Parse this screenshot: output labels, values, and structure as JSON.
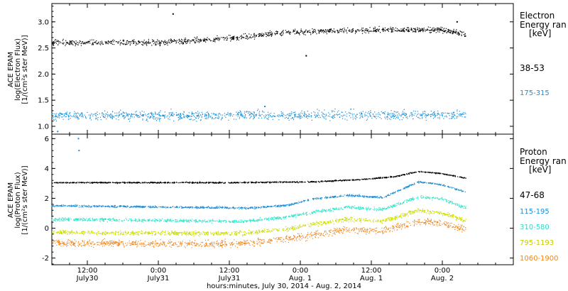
{
  "chart_data": [
    {
      "type": "scatter",
      "instrument_label": "ACE EPAM",
      "ylabel": "log(Electron Flux)",
      "ylabel_units": "[1/(cm²s ster MeV)]",
      "ylim": [
        0.85,
        3.35
      ],
      "yticks": [
        1.0,
        1.5,
        2.0,
        2.5,
        3.0
      ],
      "ytick_labels": [
        "1.0",
        "1.5",
        "2.0",
        "2.5",
        "3.0"
      ],
      "legend_title": "Electron",
      "legend_subtitle": "Energy ran",
      "legend_units": "[keV]",
      "series": [
        {
          "name": "38-53",
          "color": "#000000",
          "approx_level": [
            [
              0,
              2.6
            ],
            [
              18,
              2.6
            ],
            [
              30,
              2.68
            ],
            [
              40,
              2.8
            ],
            [
              55,
              2.85
            ],
            [
              66,
              2.85
            ],
            [
              70,
              2.75
            ]
          ],
          "scatter": 0.05,
          "outliers": [
            [
              20.5,
              3.15
            ],
            [
              43,
              2.35
            ],
            [
              68.5,
              3.0
            ]
          ]
        },
        {
          "name": "175-315",
          "color": "#1a8fd9",
          "approx_level": [
            [
              0,
              1.2
            ],
            [
              70,
              1.22
            ]
          ],
          "scatter": 0.08,
          "outliers": [
            [
              1,
              0.9
            ],
            [
              36,
              1.38
            ]
          ]
        }
      ]
    },
    {
      "type": "scatter",
      "instrument_label": "ACE EPAM",
      "ylabel": "log(Proton Flux)",
      "ylabel_units": "[1/(cm²s ster MeV)]",
      "ylim": [
        -2.45,
        6.3
      ],
      "yticks": [
        -2,
        0,
        2,
        4,
        6
      ],
      "ytick_labels": [
        "-2",
        "0",
        "2",
        "4",
        "6"
      ],
      "legend_title": "Proton",
      "legend_subtitle": "Energy ran",
      "legend_units": "[keV]",
      "series": [
        {
          "name": "47-68",
          "color": "#000000",
          "approx_level": [
            [
              0,
              3.05
            ],
            [
              30,
              3.05
            ],
            [
              44,
              3.1
            ],
            [
              52,
              3.25
            ],
            [
              58,
              3.45
            ],
            [
              62,
              3.8
            ],
            [
              66,
              3.65
            ],
            [
              70,
              3.35
            ]
          ],
          "scatter": 0.04,
          "outliers": []
        },
        {
          "name": "115-195",
          "color": "#1a8fd9",
          "approx_level": [
            [
              0,
              1.5
            ],
            [
              34,
              1.35
            ],
            [
              40,
              1.55
            ],
            [
              44,
              1.95
            ],
            [
              50,
              2.2
            ],
            [
              56,
              2.05
            ],
            [
              62,
              3.1
            ],
            [
              66,
              2.9
            ],
            [
              70,
              2.4
            ]
          ],
          "scatter": 0.06,
          "outliers": [
            [
              4.5,
              6.0
            ],
            [
              4.6,
              5.2
            ]
          ]
        },
        {
          "name": "310-580",
          "color": "#33e6cc",
          "approx_level": [
            [
              0,
              0.6
            ],
            [
              32,
              0.45
            ],
            [
              40,
              0.75
            ],
            [
              44,
              1.05
            ],
            [
              50,
              1.4
            ],
            [
              56,
              1.25
            ],
            [
              62,
              2.1
            ],
            [
              66,
              1.95
            ],
            [
              70,
              1.35
            ]
          ],
          "scatter": 0.1,
          "outliers": []
        },
        {
          "name": "795-1193",
          "color": "#ccdd00",
          "approx_level": [
            [
              0,
              -0.3
            ],
            [
              32,
              -0.35
            ],
            [
              40,
              -0.05
            ],
            [
              44,
              0.25
            ],
            [
              50,
              0.6
            ],
            [
              56,
              0.45
            ],
            [
              62,
              1.2
            ],
            [
              66,
              1.0
            ],
            [
              70,
              0.5
            ]
          ],
          "scatter": 0.14,
          "outliers": []
        },
        {
          "name": "1060-1900",
          "color": "#ee8822",
          "approx_level": [
            [
              0,
              -1.0
            ],
            [
              32,
              -1.05
            ],
            [
              40,
              -0.7
            ],
            [
              44,
              -0.45
            ],
            [
              50,
              -0.1
            ],
            [
              56,
              -0.2
            ],
            [
              62,
              0.45
            ],
            [
              66,
              0.35
            ],
            [
              70,
              -0.1
            ]
          ],
          "scatter": 0.22,
          "outliers": []
        }
      ]
    }
  ],
  "x_axis": {
    "label": "hours:minutes, July 30, 2014 - Aug. 2, 2014",
    "ticks": [
      {
        "hour": 6,
        "time": "12:00",
        "date": "July30"
      },
      {
        "hour": 18,
        "time": "0:00",
        "date": "July31"
      },
      {
        "hour": 30,
        "time": "12:00",
        "date": "July31"
      },
      {
        "hour": 42,
        "time": "0:00",
        "date": "Aug. 1"
      },
      {
        "hour": 54,
        "time": "12:00",
        "date": "Aug. 1"
      },
      {
        "hour": 66,
        "time": "0:00",
        "date": "Aug. 2"
      }
    ],
    "xlim": [
      0,
      78
    ],
    "data_end_hour": 70
  }
}
